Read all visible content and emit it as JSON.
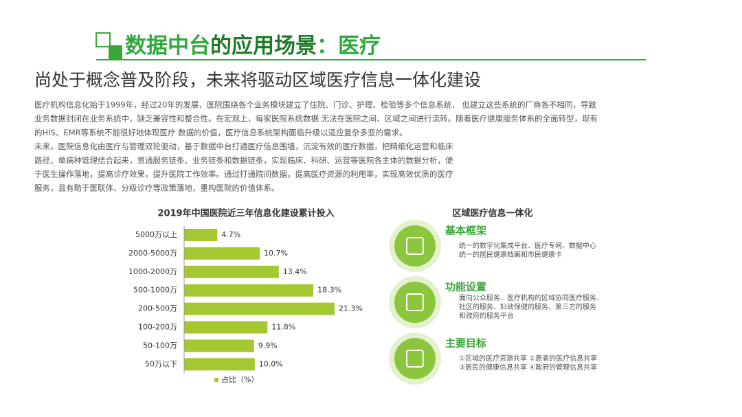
{
  "header": {
    "title_parts": [
      "数据中台",
      "的应用场景",
      "：医疗"
    ],
    "subtitle": "尚处于概念普及阶段，未来将驱动区域医疗信息一体化建设"
  },
  "body": {
    "paragraphs": [
      [
        "医疗机构信息化始于1999年，经过20年的发展，医院围绕各个业务模块建立了住院、门诊、护理、检验等多个信息系统， 但建立这些系统的厂商各不相同，导致",
        "业务数据封闭在业务系统中，缺乏兼容性和整合性。在宏观上，每家医院系统数据 无法在医院之间、区域之间进行流转。随着医疗健康服务体系的全面转型，现有",
        "的HIS、EMR等系统不能很好地体现医疗 数据的价值，医疗信息系统架构面临升级以适应复杂多变的需求。"
      ],
      [
        "未来，医院信息化由医疗与管理双轮驱动，基于数据中台打通医疗信息围墙，沉淀有效的医疗数据，把精细化运营和临床",
        "路径、单病种管理结合起来，贯通服务链条、业务链条和数据链条，实现临床、科研、运营等医院各主体的数据分析，便",
        "于医生操作落地，提高诊疗效果，提升医院工作效率。通过打通院间数据，提高医疗资源的利用率，实现高效优质的医疗",
        "服务，且有助于医联体、分级诊疗等政策落地，重构医院的价值体系。"
      ]
    ]
  },
  "chart_data": {
    "type": "hbar",
    "title": "2019年中国医院近三年信息化建设累计投入",
    "categories": [
      "5000万以上",
      "2000-5000万",
      "1000-2000万",
      "500-1000万",
      "200-500万",
      "100-200万",
      "50-100万",
      "50万以下"
    ],
    "series": [
      {
        "name": "占比（%）",
        "color": "#a5c832",
        "values": [
          4.7,
          10.7,
          13.4,
          18.3,
          21.3,
          11.8,
          9.9,
          10.0
        ],
        "value_labels": [
          "4.7%",
          "10.7%",
          "13.4%",
          "18.3%",
          "21.3%",
          "11.8%",
          "9.9%",
          "10.0%"
        ]
      }
    ],
    "xlim": [
      0,
      25
    ]
  },
  "panel": {
    "title": "区域医疗信息一体化",
    "items": [
      {
        "title": "基本框架",
        "lines": [
          "统一的数字化集成平台、医疗专网、数据中心",
          "统一的居民健康档案和市民健康卡"
        ]
      },
      {
        "title": "功能设置",
        "lines": [
          "面向公众服务、医疗机构的区域协同医疗服务、",
          "社区的服务、妇幼保健的服务、第三方的服务",
          "和政府的服务平台"
        ]
      },
      {
        "title": "主要目标",
        "lines": [
          "①区域的医疗资源共享 ②患者的医疗信息共享",
          "③居民的健康信息共享 ④政府的管理信息共享"
        ]
      }
    ]
  }
}
